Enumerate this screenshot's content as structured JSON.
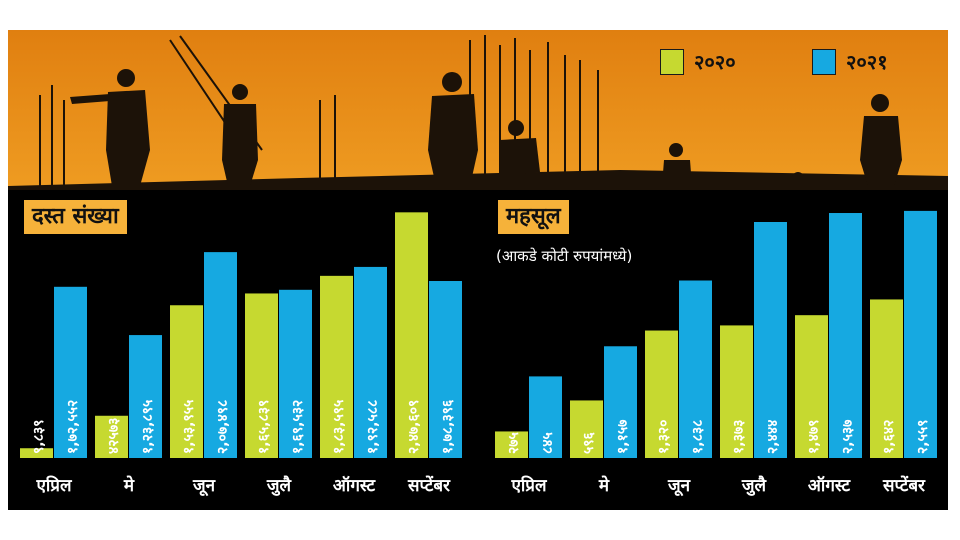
{
  "colors": {
    "y2020": "#c6d930",
    "y2021": "#16a9e1",
    "panel": "#000000",
    "sky_top": "#e88a12",
    "sky_mid": "#f6ae2c",
    "sky_low": "#fbd05a",
    "silhouette": "#1c1208",
    "title_bg": "#f6b23a"
  },
  "legend": {
    "label_2020": "२०२०",
    "label_2021": "२०२१"
  },
  "chart_data": [
    {
      "type": "bar",
      "title": "दस्त संख्या",
      "categories": [
        "एप्रिल",
        "मे",
        "जून",
        "जुलै",
        "ऑगस्ट",
        "सप्टेंबर"
      ],
      "series": [
        {
          "name": "२०२०",
          "values": [
            9839,
            42573,
            153955,
            165839,
            183595,
            247609
          ],
          "labels": [
            "९,८३९",
            "४२५७३",
            "१,५३,९५५",
            "१,६५,८३९",
            "१,८३,५९५",
            "२,४७,६०९"
          ]
        },
        {
          "name": "२०२१",
          "values": [
            172552,
            123895,
            207498,
            169532,
            192588,
            178396
          ],
          "labels": [
            "१,७२,५५२",
            "१,२३,८९५",
            "२,०७,४९८",
            "१,६९,५३२",
            "१,९२,५८८",
            "१,७८,३९६"
          ]
        }
      ],
      "ylim": [
        0,
        255000
      ]
    },
    {
      "type": "bar",
      "title": "महसूल",
      "subtitle": "(आकडे कोटी रुपयांमध्ये)",
      "categories": [
        "एप्रिल",
        "मे",
        "जून",
        "जुलै",
        "ऑगस्ट",
        "सप्टेंबर"
      ],
      "series": [
        {
          "name": "२०२०",
          "values": [
            275,
            596,
            1320,
            1373,
            1479,
            1642
          ],
          "labels": [
            "२७५",
            "५९६",
            "१,३२०",
            "१,३७३",
            "१,४७९",
            "१,६४२"
          ]
        },
        {
          "name": "२०२१",
          "values": [
            845,
            1157,
            1838,
            2444,
            2537,
            2559
          ],
          "labels": [
            "८४५",
            "१,१५७",
            "१,८३८",
            "२,४४४",
            "२,५३७",
            "२,५५९"
          ]
        }
      ],
      "ylim": [
        0,
        2620
      ]
    }
  ]
}
